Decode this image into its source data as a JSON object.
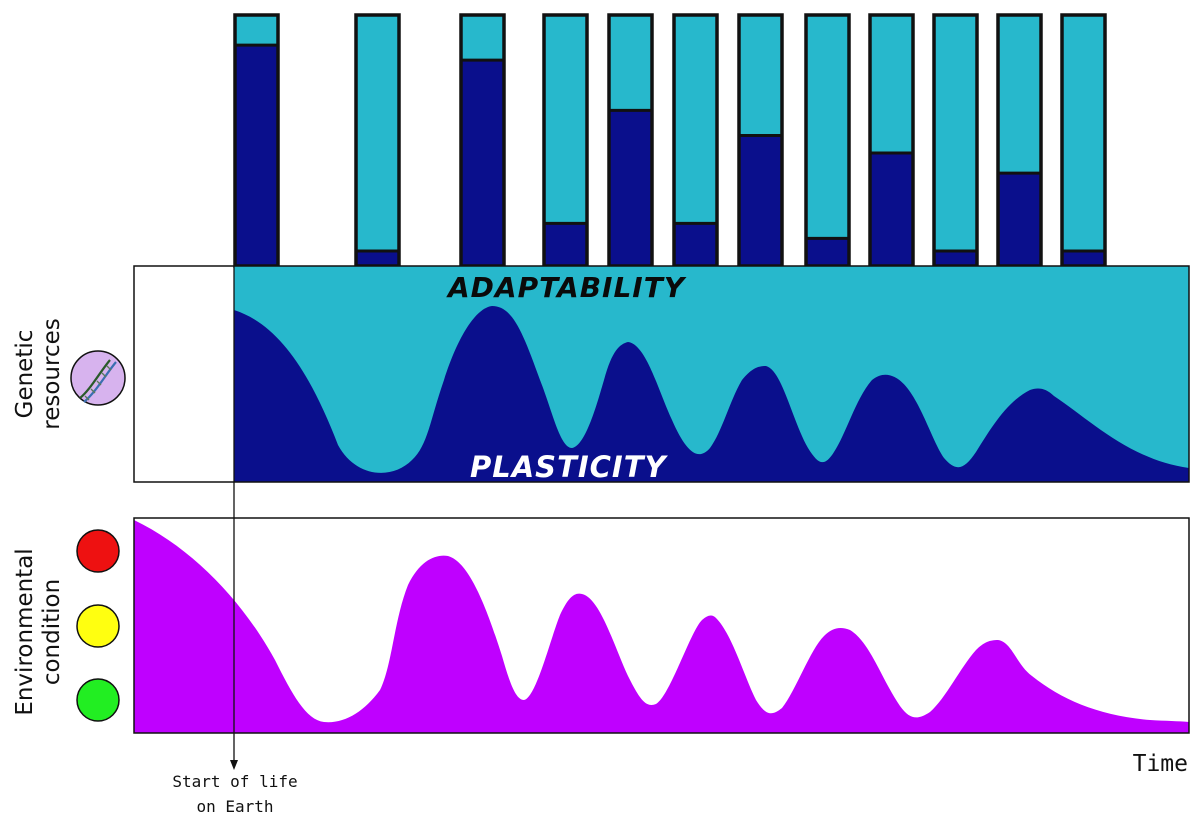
{
  "labels": {
    "genetic_resources_line1": "Genetic",
    "genetic_resources_line2": "resources",
    "environmental_line1": "Environmental",
    "environmental_line2": "condition",
    "adaptability": "ADAPTABILITY",
    "plasticity": "PLASTICITY",
    "time": "Time",
    "start_of_life_line1": "Start of life",
    "start_of_life_line2": "on Earth"
  },
  "colors": {
    "adaptability": "#27b8cc",
    "plasticity": "#0a0f8c",
    "environment": "#bf00ff",
    "signal_red": "#ee1111",
    "signal_yellow": "#ffff10",
    "signal_green": "#22ee22",
    "dna_badge": "#d7b3ee"
  },
  "icons": {
    "genetic": "dna-helix-icon",
    "signals": [
      "red-signal-icon",
      "yellow-signal-icon",
      "green-signal-icon"
    ]
  },
  "chart_data": {
    "type": "bar",
    "stacked": true,
    "series": [
      {
        "name": "plasticity",
        "values": [
          0.88,
          0.06,
          0.82,
          0.17,
          0.62,
          0.17,
          0.52,
          0.11,
          0.45,
          0.06,
          0.37,
          0.06
        ]
      },
      {
        "name": "adaptability",
        "values": [
          0.12,
          0.94,
          0.18,
          0.83,
          0.38,
          0.83,
          0.48,
          0.89,
          0.55,
          0.94,
          0.63,
          0.94
        ]
      }
    ]
  }
}
